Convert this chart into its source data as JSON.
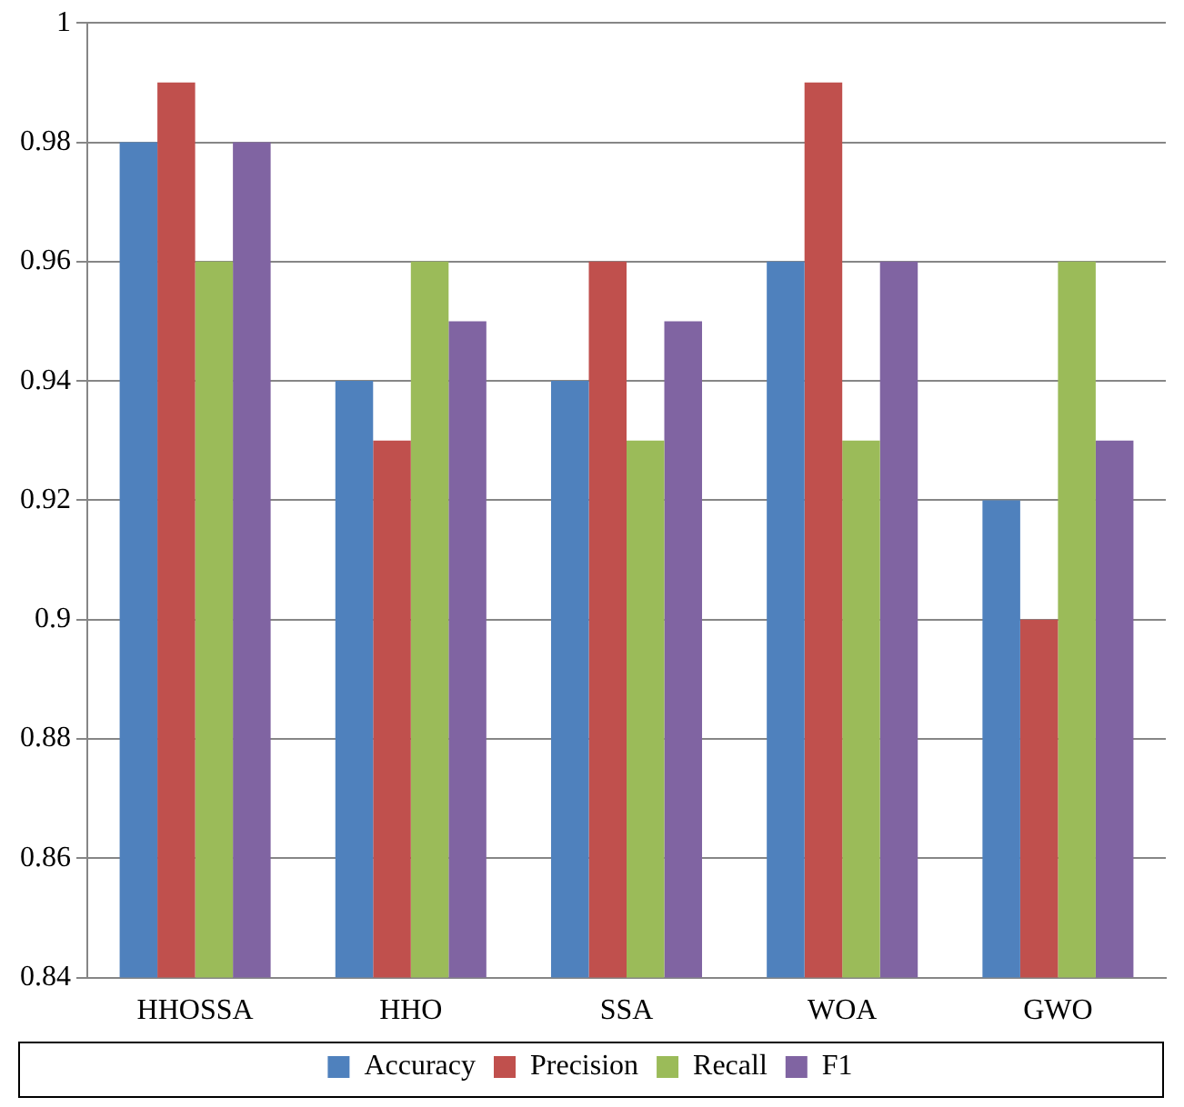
{
  "chart_data": {
    "type": "bar",
    "categories": [
      "HHOSSA",
      "HHO",
      "SSA",
      "WOA",
      "GWO"
    ],
    "series": [
      {
        "name": "Accuracy",
        "color": "#4f81bd",
        "values": [
          0.98,
          0.94,
          0.94,
          0.96,
          0.92
        ]
      },
      {
        "name": "Precision",
        "color": "#c0504d",
        "values": [
          0.99,
          0.93,
          0.96,
          0.99,
          0.9
        ]
      },
      {
        "name": "Recall",
        "color": "#9bbb59",
        "values": [
          0.96,
          0.96,
          0.93,
          0.93,
          0.96
        ]
      },
      {
        "name": "F1",
        "color": "#8064a2",
        "values": [
          0.98,
          0.95,
          0.95,
          0.96,
          0.93
        ]
      }
    ],
    "ylim": [
      0.84,
      1
    ],
    "yticks": [
      0.84,
      0.86,
      0.88,
      0.9,
      0.92,
      0.94,
      0.96,
      0.98,
      1
    ],
    "grid": "y",
    "legend": "bottom"
  }
}
